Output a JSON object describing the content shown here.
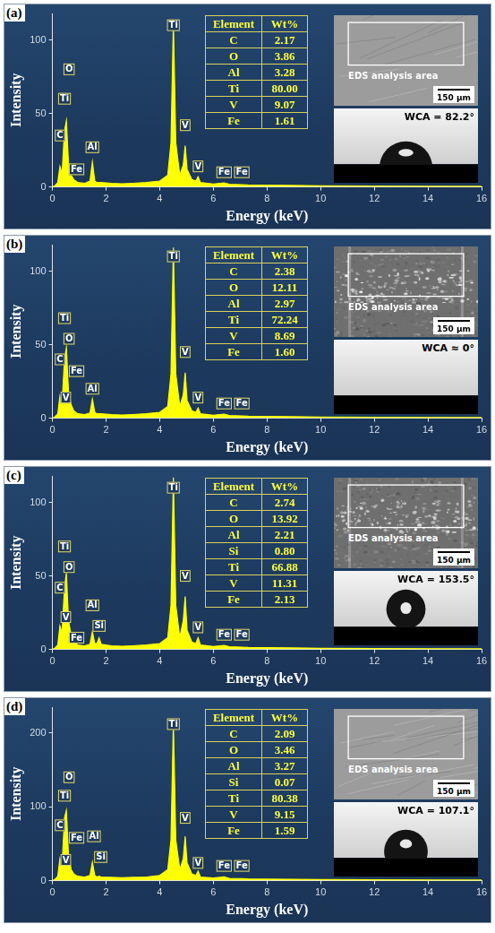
{
  "chart_data": [
    {
      "type": "area",
      "panel": "(a)",
      "x_label": "Energy (keV)",
      "y_label": "Intensity",
      "color": "#ffff00",
      "grid": false,
      "xlim": [
        0,
        16
      ],
      "xticks": [
        0,
        2,
        4,
        6,
        8,
        10,
        12,
        14,
        16
      ],
      "ylim": [
        0,
        118
      ],
      "yticks": [
        0,
        50,
        100
      ],
      "x": [
        0,
        0.1,
        0.2,
        0.28,
        0.36,
        0.45,
        0.52,
        0.6,
        0.7,
        0.8,
        0.95,
        1.2,
        1.4,
        1.49,
        1.58,
        1.66,
        1.74,
        1.82,
        2.2,
        2.6,
        3.0,
        3.5,
        4.0,
        4.3,
        4.42,
        4.51,
        4.6,
        4.75,
        4.88,
        4.95,
        5.02,
        5.2,
        5.35,
        5.43,
        5.52,
        6.0,
        6.4,
        6.6,
        7.06,
        7.3,
        8,
        9,
        10,
        12,
        14,
        16
      ],
      "values": [
        0,
        1,
        3,
        14,
        9,
        38,
        45,
        16,
        8,
        5,
        3,
        2.5,
        4,
        17,
        4,
        3,
        3,
        3,
        2.5,
        2.2,
        2.5,
        3,
        4,
        8,
        30,
        112,
        30,
        8,
        15,
        28,
        12,
        5,
        4,
        7,
        3,
        2,
        2.8,
        1.8,
        1.6,
        1.3,
        1.2,
        1,
        0.8,
        0.6,
        0.5,
        0.4
      ],
      "annotations": [
        {
          "text": "C",
          "x": 0.28,
          "y": 35
        },
        {
          "text": "Ti",
          "x": 0.45,
          "y": 60
        },
        {
          "text": "O",
          "x": 0.62,
          "y": 80
        },
        {
          "text": "Fe",
          "x": 0.9,
          "y": 12
        },
        {
          "text": "Al",
          "x": 1.49,
          "y": 27
        },
        {
          "text": "Ti",
          "x": 4.51,
          "y": 110
        },
        {
          "text": "V",
          "x": 4.95,
          "y": 42
        },
        {
          "text": "V",
          "x": 5.43,
          "y": 14
        },
        {
          "text": "Fe",
          "x": 6.4,
          "y": 10
        },
        {
          "text": "Fe",
          "x": 7.06,
          "y": 10
        }
      ],
      "table": {
        "columns": [
          "Element",
          "Wt%"
        ],
        "rows": [
          [
            "C",
            "2.17"
          ],
          [
            "O",
            "3.86"
          ],
          [
            "Al",
            "3.28"
          ],
          [
            "Ti",
            "80.00"
          ],
          [
            "V",
            "9.07"
          ],
          [
            "Fe",
            "1.61"
          ]
        ]
      },
      "inset": {
        "sem_label": "EDS analysis area",
        "scale_bar": "150 μm",
        "wca": {
          "value": 82.2,
          "label": "WCA = 82.2°"
        }
      }
    },
    {
      "type": "area",
      "panel": "(b)",
      "x_label": "Energy (keV)",
      "y_label": "Intensity",
      "color": "#ffff00",
      "grid": false,
      "xlim": [
        0,
        16
      ],
      "xticks": [
        0,
        2,
        4,
        6,
        8,
        10,
        12,
        14,
        16
      ],
      "ylim": [
        0,
        118
      ],
      "yticks": [
        0,
        50,
        100
      ],
      "x": [
        0,
        0.1,
        0.2,
        0.28,
        0.36,
        0.45,
        0.52,
        0.6,
        0.7,
        0.8,
        0.95,
        1.2,
        1.4,
        1.49,
        1.58,
        1.66,
        1.74,
        1.82,
        2.2,
        2.6,
        3.0,
        3.5,
        4.0,
        4.3,
        4.42,
        4.51,
        4.6,
        4.75,
        4.88,
        4.95,
        5.02,
        5.2,
        5.35,
        5.43,
        5.52,
        6.0,
        6.4,
        6.6,
        7.06,
        7.3,
        8,
        9,
        10,
        12,
        14,
        16
      ],
      "values": [
        0,
        1,
        3,
        15,
        10,
        40,
        48,
        18,
        9,
        5,
        3,
        2.5,
        3.5,
        13,
        4,
        3,
        3,
        3,
        2.5,
        2.2,
        2.5,
        3,
        4,
        8,
        30,
        116,
        30,
        8,
        16,
        31,
        12,
        5,
        4,
        7,
        3,
        2,
        2.8,
        1.8,
        1.6,
        1.3,
        1.2,
        1,
        0.8,
        0.6,
        0.5,
        0.4
      ],
      "annotations": [
        {
          "text": "Ti",
          "x": 0.45,
          "y": 68
        },
        {
          "text": "O",
          "x": 0.62,
          "y": 54
        },
        {
          "text": "C",
          "x": 0.28,
          "y": 40
        },
        {
          "text": "Fe",
          "x": 0.9,
          "y": 32
        },
        {
          "text": "V",
          "x": 0.5,
          "y": 14
        },
        {
          "text": "Al",
          "x": 1.49,
          "y": 20
        },
        {
          "text": "Ti",
          "x": 4.51,
          "y": 110
        },
        {
          "text": "V",
          "x": 4.95,
          "y": 45
        },
        {
          "text": "V",
          "x": 5.43,
          "y": 14
        },
        {
          "text": "Fe",
          "x": 6.4,
          "y": 10
        },
        {
          "text": "Fe",
          "x": 7.06,
          "y": 10
        }
      ],
      "table": {
        "columns": [
          "Element",
          "Wt%"
        ],
        "rows": [
          [
            "C",
            "2.38"
          ],
          [
            "O",
            "12.11"
          ],
          [
            "Al",
            "2.97"
          ],
          [
            "Ti",
            "72.24"
          ],
          [
            "V",
            "8.69"
          ],
          [
            "Fe",
            "1.60"
          ]
        ]
      },
      "inset": {
        "sem_label": "EDS analysis area",
        "scale_bar": "150 μm",
        "wca": {
          "value": 0,
          "label": "WCA ≈ 0°"
        }
      }
    },
    {
      "type": "area",
      "panel": "(c)",
      "x_label": "Energy (keV)",
      "y_label": "Intensity",
      "color": "#ffff00",
      "grid": false,
      "xlim": [
        0,
        16
      ],
      "xticks": [
        0,
        2,
        4,
        6,
        8,
        10,
        12,
        14,
        16
      ],
      "ylim": [
        0,
        118
      ],
      "yticks": [
        0,
        50,
        100
      ],
      "x": [
        0,
        0.1,
        0.2,
        0.28,
        0.36,
        0.45,
        0.52,
        0.6,
        0.7,
        0.8,
        0.95,
        1.2,
        1.4,
        1.49,
        1.58,
        1.66,
        1.74,
        1.82,
        2.2,
        2.6,
        3.0,
        3.5,
        4.0,
        4.3,
        4.42,
        4.51,
        4.6,
        4.75,
        4.88,
        4.95,
        5.02,
        5.2,
        5.35,
        5.43,
        5.52,
        6.0,
        6.4,
        6.6,
        7.06,
        7.3,
        8,
        9,
        10,
        12,
        14,
        16
      ],
      "values": [
        0,
        1,
        3,
        16,
        11,
        42,
        52,
        20,
        9,
        5,
        3,
        2.5,
        3.5,
        12,
        4,
        4,
        8,
        3.5,
        2.5,
        2.2,
        2.5,
        3,
        4,
        8,
        30,
        117,
        30,
        8,
        20,
        36,
        13,
        5,
        4,
        8,
        3,
        2,
        2.8,
        1.8,
        1.6,
        1.3,
        1.2,
        1,
        0.8,
        0.6,
        0.5,
        0.4
      ],
      "annotations": [
        {
          "text": "Ti",
          "x": 0.45,
          "y": 70
        },
        {
          "text": "O",
          "x": 0.62,
          "y": 56
        },
        {
          "text": "C",
          "x": 0.28,
          "y": 42
        },
        {
          "text": "V",
          "x": 0.5,
          "y": 22
        },
        {
          "text": "Fe",
          "x": 0.9,
          "y": 8
        },
        {
          "text": "Al",
          "x": 1.49,
          "y": 30
        },
        {
          "text": "Si",
          "x": 1.74,
          "y": 16
        },
        {
          "text": "Ti",
          "x": 4.51,
          "y": 110
        },
        {
          "text": "V",
          "x": 4.95,
          "y": 50
        },
        {
          "text": "V",
          "x": 5.43,
          "y": 15
        },
        {
          "text": "Fe",
          "x": 6.4,
          "y": 10
        },
        {
          "text": "Fe",
          "x": 7.06,
          "y": 10
        }
      ],
      "table": {
        "columns": [
          "Element",
          "Wt%"
        ],
        "rows": [
          [
            "C",
            "2.74"
          ],
          [
            "O",
            "13.92"
          ],
          [
            "Al",
            "2.21"
          ],
          [
            "Si",
            "0.80"
          ],
          [
            "Ti",
            "66.88"
          ],
          [
            "V",
            "11.31"
          ],
          [
            "Fe",
            "2.13"
          ]
        ]
      },
      "inset": {
        "sem_label": "EDS analysis area",
        "scale_bar": "150 μm",
        "wca": {
          "value": 153.5,
          "label": "WCA = 153.5°"
        }
      }
    },
    {
      "type": "area",
      "panel": "(d)",
      "x_label": "Energy (keV)",
      "y_label": "Intensity",
      "color": "#ffff00",
      "grid": false,
      "xlim": [
        0,
        16
      ],
      "xticks": [
        0,
        2,
        4,
        6,
        8,
        10,
        12,
        14,
        16
      ],
      "ylim": [
        0,
        235
      ],
      "yticks": [
        0,
        100,
        200
      ],
      "x": [
        0,
        0.1,
        0.2,
        0.28,
        0.36,
        0.45,
        0.52,
        0.6,
        0.7,
        0.8,
        0.95,
        1.2,
        1.4,
        1.49,
        1.58,
        1.66,
        1.74,
        1.82,
        2.2,
        2.6,
        3.0,
        3.5,
        4.0,
        4.3,
        4.42,
        4.51,
        4.6,
        4.75,
        4.88,
        4.95,
        5.02,
        5.2,
        5.35,
        5.43,
        5.52,
        6.0,
        6.4,
        6.6,
        7.06,
        7.3,
        8,
        9,
        10,
        12,
        14,
        16
      ],
      "values": [
        0,
        2,
        6,
        30,
        20,
        85,
        95,
        35,
        15,
        9,
        6,
        5,
        7,
        25,
        7,
        5,
        6,
        5,
        4.5,
        4,
        4.5,
        5,
        7,
        15,
        55,
        215,
        55,
        15,
        30,
        60,
        24,
        9,
        7,
        13,
        5,
        3.5,
        5,
        3,
        2.8,
        2.3,
        2,
        1.8,
        1.5,
        1.2,
        1,
        0.8
      ],
      "annotations": [
        {
          "text": "O",
          "x": 0.62,
          "y": 140
        },
        {
          "text": "Ti",
          "x": 0.45,
          "y": 115
        },
        {
          "text": "C",
          "x": 0.28,
          "y": 75
        },
        {
          "text": "Fe",
          "x": 0.9,
          "y": 58
        },
        {
          "text": "V",
          "x": 0.5,
          "y": 28
        },
        {
          "text": "Al",
          "x": 1.55,
          "y": 60
        },
        {
          "text": "Si",
          "x": 1.8,
          "y": 32
        },
        {
          "text": "Ti",
          "x": 4.51,
          "y": 212
        },
        {
          "text": "V",
          "x": 4.95,
          "y": 85
        },
        {
          "text": "V",
          "x": 5.43,
          "y": 24
        },
        {
          "text": "Fe",
          "x": 6.4,
          "y": 20
        },
        {
          "text": "Fe",
          "x": 7.06,
          "y": 20
        }
      ],
      "table": {
        "columns": [
          "Element",
          "Wt%"
        ],
        "rows": [
          [
            "C",
            "2.09"
          ],
          [
            "O",
            "3.46"
          ],
          [
            "Al",
            "3.27"
          ],
          [
            "Si",
            "0.07"
          ],
          [
            "Ti",
            "80.38"
          ],
          [
            "V",
            "9.15"
          ],
          [
            "Fe",
            "1.59"
          ]
        ]
      },
      "inset": {
        "sem_label": "EDS analysis area",
        "scale_bar": "150 μm",
        "wca": {
          "value": 107.1,
          "label": "WCA = 107.1°"
        }
      }
    }
  ]
}
